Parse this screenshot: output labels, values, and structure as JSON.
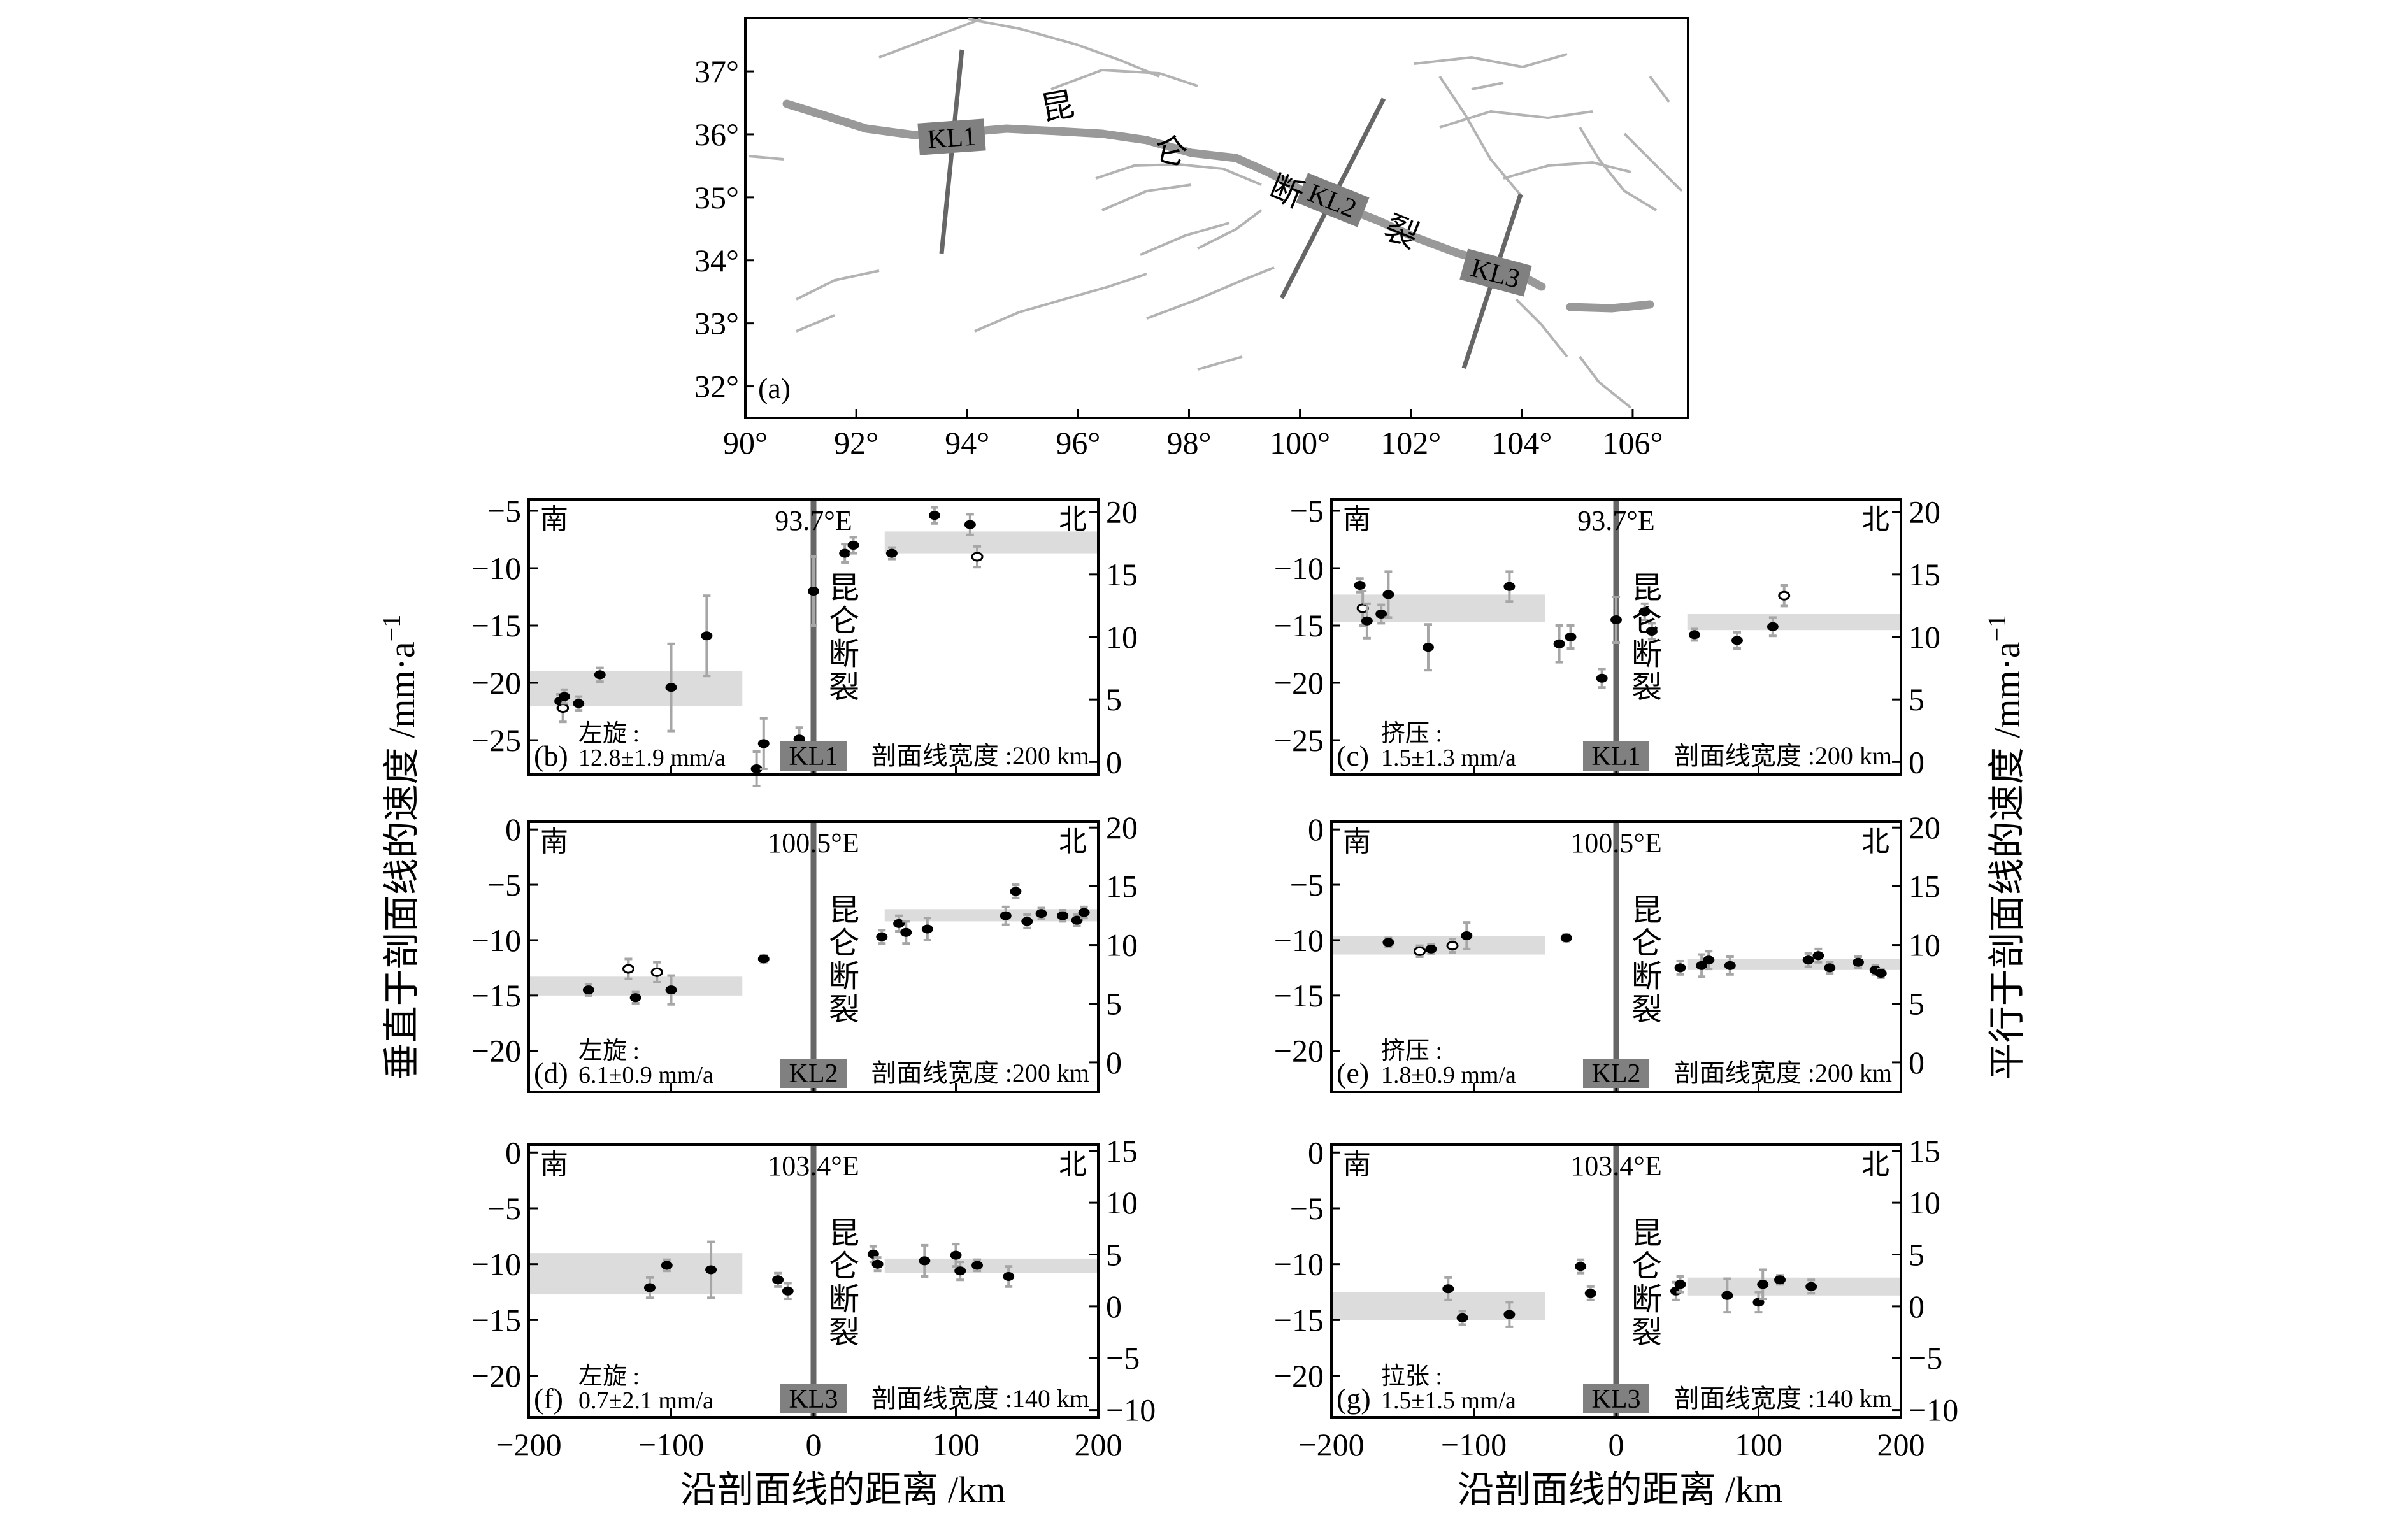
{
  "colors": {
    "fault_trace": "#999999",
    "secondary_faults": "#b3b3b3",
    "profile_line": "#666666",
    "label_box": "#808080",
    "band": "#dcdcdc",
    "error_bar": "#a6a6a6",
    "point": "#000000"
  },
  "map": {
    "panel_label": "(a)",
    "lon_ticks": [
      "90°",
      "92°",
      "94°",
      "96°",
      "98°",
      "100°",
      "102°",
      "104°",
      "106°"
    ],
    "lat_ticks": [
      "32°",
      "33°",
      "34°",
      "35°",
      "36°",
      "37°"
    ],
    "fault_chars": [
      "昆",
      "仑",
      "断",
      "裂"
    ],
    "profile_labels": [
      "KL1",
      "KL2",
      "KL3"
    ]
  },
  "axes_labels": {
    "left_y": "垂直于剖面线的速度 /mm·a",
    "left_y_sup": "−1",
    "right_y": "平行于剖面线的速度 /mm·a",
    "right_y_sup": "−1",
    "x": "沿剖面线的距离 /km"
  },
  "profile_text": {
    "south": "南",
    "north": "北",
    "fault_name": "昆仑断裂",
    "fault_chars": [
      "昆",
      "仑",
      "断",
      "裂"
    ]
  },
  "chart_data": [
    {
      "type": "scatter",
      "panel": "(b)",
      "profile": "KL1",
      "longitude": "93.7°E",
      "motion_label": "左旋 :",
      "rate": "12.8±1.9 mm/a",
      "width_label": "剖面线宽度 :200 km",
      "xlim": [
        -200,
        200
      ],
      "ylim_left": [
        -28,
        -4
      ],
      "ylim_right": [
        -1,
        21
      ],
      "yticks_left": [
        "−5",
        "−10",
        "−15",
        "−20",
        "−25"
      ],
      "yticks_right": [
        "20",
        "15",
        "10",
        "5",
        "0"
      ],
      "xticks": [],
      "bands": [
        {
          "x": [
            -200,
            -50
          ],
          "y": [
            -22,
            -19
          ]
        },
        {
          "x": [
            50,
            200
          ],
          "y": [
            -8.7,
            -6.8
          ]
        }
      ],
      "points": [
        {
          "x": -178,
          "y": -21.6,
          "err": 0.6,
          "open": false
        },
        {
          "x": -176,
          "y": -22.2,
          "err": 1.2,
          "open": true
        },
        {
          "x": -175,
          "y": -21.2,
          "err": 0.6,
          "open": false
        },
        {
          "x": -165,
          "y": -21.8,
          "err": 0.6,
          "open": false
        },
        {
          "x": -150,
          "y": -19.3,
          "err": 0.6,
          "open": false
        },
        {
          "x": -100,
          "y": -20.4,
          "err": 3.8,
          "open": false
        },
        {
          "x": -75,
          "y": -15.9,
          "err": 3.5,
          "open": false
        },
        {
          "x": -40,
          "y": -27.5,
          "err": 1.5,
          "open": false
        },
        {
          "x": -35,
          "y": -25.3,
          "err": 2.2,
          "open": false
        },
        {
          "x": -10,
          "y": -24.9,
          "err": 1.0,
          "open": false
        },
        {
          "x": 0,
          "y": -12.0,
          "err": 3.0,
          "open": false
        },
        {
          "x": 22,
          "y": -8.7,
          "err": 0.8,
          "open": false
        },
        {
          "x": 28,
          "y": -8.0,
          "err": 0.7,
          "open": false
        },
        {
          "x": 55,
          "y": -8.7,
          "err": 0.5,
          "open": false
        },
        {
          "x": 85,
          "y": -5.4,
          "err": 0.7,
          "open": false
        },
        {
          "x": 110,
          "y": -6.2,
          "err": 0.9,
          "open": false
        },
        {
          "x": 115,
          "y": -9.0,
          "err": 0.9,
          "open": true
        }
      ]
    },
    {
      "type": "scatter",
      "panel": "(c)",
      "profile": "KL1",
      "longitude": "93.7°E",
      "motion_label": "挤压 :",
      "rate": "1.5±1.3 mm/a",
      "width_label": "剖面线宽度 :200 km",
      "xlim": [
        -200,
        200
      ],
      "ylim_left": [
        -28,
        -4
      ],
      "ylim_right": [
        -1,
        21
      ],
      "yticks_left": [
        "−5",
        "−10",
        "−15",
        "−20",
        "−25"
      ],
      "yticks_right": [
        "20",
        "15",
        "10",
        "5",
        "0"
      ],
      "xticks": [],
      "bands": [
        {
          "x": [
            -200,
            -50
          ],
          "y": [
            -14.7,
            -12.3
          ]
        },
        {
          "x": [
            50,
            200
          ],
          "y": [
            -15.4,
            -14
          ]
        }
      ],
      "points": [
        {
          "x": -180,
          "y": -11.5,
          "err": 0.6,
          "open": false
        },
        {
          "x": -178,
          "y": -13.5,
          "err": 1.5,
          "open": true
        },
        {
          "x": -175,
          "y": -14.6,
          "err": 1.5,
          "open": false
        },
        {
          "x": -165,
          "y": -14.0,
          "err": 0.8,
          "open": false
        },
        {
          "x": -160,
          "y": -12.3,
          "err": 2.0,
          "open": false
        },
        {
          "x": -132,
          "y": -16.9,
          "err": 2.0,
          "open": false
        },
        {
          "x": -75,
          "y": -11.6,
          "err": 1.3,
          "open": false
        },
        {
          "x": -40,
          "y": -16.6,
          "err": 1.6,
          "open": false
        },
        {
          "x": -32,
          "y": -16.0,
          "err": 1.0,
          "open": false
        },
        {
          "x": -10,
          "y": -19.6,
          "err": 0.8,
          "open": false
        },
        {
          "x": 0,
          "y": -14.5,
          "err": 2.0,
          "open": false
        },
        {
          "x": 20,
          "y": -13.8,
          "err": 0.7,
          "open": false
        },
        {
          "x": 25,
          "y": -15.5,
          "err": 0.7,
          "open": false
        },
        {
          "x": 55,
          "y": -15.8,
          "err": 0.5,
          "open": false
        },
        {
          "x": 85,
          "y": -16.3,
          "err": 0.7,
          "open": false
        },
        {
          "x": 110,
          "y": -15.1,
          "err": 0.8,
          "open": false
        },
        {
          "x": 118,
          "y": -12.4,
          "err": 0.9,
          "open": true
        }
      ]
    },
    {
      "type": "scatter",
      "panel": "(d)",
      "profile": "KL2",
      "longitude": "100.5°E",
      "motion_label": "左旋 :",
      "rate": "6.1±0.9 mm/a",
      "width_label": "剖面线宽度 :200 km",
      "xlim": [
        -200,
        200
      ],
      "ylim_left": [
        -23.7,
        0.7
      ],
      "ylim_right": [
        -2.5,
        20.5
      ],
      "yticks_left": [
        "0",
        "−5",
        "−10",
        "−15",
        "−20"
      ],
      "yticks_right": [
        "20",
        "15",
        "10",
        "5",
        "0"
      ],
      "xticks": [],
      "bands": [
        {
          "x": [
            -200,
            -50
          ],
          "y": [
            -15,
            -13.3
          ]
        },
        {
          "x": [
            50,
            200
          ],
          "y": [
            -8.3,
            -7.2
          ]
        }
      ],
      "points": [
        {
          "x": -158,
          "y": -14.5,
          "err": 0.5,
          "open": false
        },
        {
          "x": -130,
          "y": -12.6,
          "err": 0.9,
          "open": true
        },
        {
          "x": -125,
          "y": -15.2,
          "err": 0.5,
          "open": false
        },
        {
          "x": -110,
          "y": -12.9,
          "err": 0.9,
          "open": true
        },
        {
          "x": -100,
          "y": -14.5,
          "err": 1.3,
          "open": false
        },
        {
          "x": -35,
          "y": -11.7,
          "err": 0.3,
          "open": false
        },
        {
          "x": 48,
          "y": -9.7,
          "err": 0.6,
          "open": false
        },
        {
          "x": 60,
          "y": -8.5,
          "err": 0.7,
          "open": false
        },
        {
          "x": 65,
          "y": -9.3,
          "err": 1.0,
          "open": false
        },
        {
          "x": 80,
          "y": -9.0,
          "err": 1.0,
          "open": false
        },
        {
          "x": 135,
          "y": -7.8,
          "err": 0.8,
          "open": false
        },
        {
          "x": 142,
          "y": -5.6,
          "err": 0.6,
          "open": false
        },
        {
          "x": 150,
          "y": -8.3,
          "err": 0.6,
          "open": false
        },
        {
          "x": 160,
          "y": -7.6,
          "err": 0.5,
          "open": false
        },
        {
          "x": 175,
          "y": -7.8,
          "err": 0.5,
          "open": false
        },
        {
          "x": 185,
          "y": -8.2,
          "err": 0.5,
          "open": false
        },
        {
          "x": 190,
          "y": -7.5,
          "err": 0.5,
          "open": false
        }
      ]
    },
    {
      "type": "scatter",
      "panel": "(e)",
      "profile": "KL2",
      "longitude": "100.5°E",
      "motion_label": "挤压 :",
      "rate": "1.8±0.9 mm/a",
      "width_label": "剖面线宽度 :200 km",
      "xlim": [
        -200,
        200
      ],
      "ylim_left": [
        -23.7,
        0.7
      ],
      "ylim_right": [
        -2.5,
        20.5
      ],
      "yticks_left": [
        "0",
        "−5",
        "−10",
        "−15",
        "−20"
      ],
      "yticks_right": [
        "20",
        "15",
        "10",
        "5",
        "0"
      ],
      "xticks": [],
      "bands": [
        {
          "x": [
            -200,
            -50
          ],
          "y": [
            -11.3,
            -9.6
          ]
        },
        {
          "x": [
            50,
            200
          ],
          "y": [
            -12.7,
            -11.7
          ]
        }
      ],
      "points": [
        {
          "x": -160,
          "y": -10.2,
          "err": 0.4,
          "open": false
        },
        {
          "x": -138,
          "y": -11.0,
          "err": 0.5,
          "open": true
        },
        {
          "x": -130,
          "y": -10.8,
          "err": 0.4,
          "open": false
        },
        {
          "x": -115,
          "y": -10.5,
          "err": 0.6,
          "open": true
        },
        {
          "x": -105,
          "y": -9.6,
          "err": 1.2,
          "open": false
        },
        {
          "x": -35,
          "y": -9.8,
          "err": 0.3,
          "open": false
        },
        {
          "x": 45,
          "y": -12.5,
          "err": 0.6,
          "open": false
        },
        {
          "x": 60,
          "y": -12.3,
          "err": 1.0,
          "open": false
        },
        {
          "x": 65,
          "y": -11.8,
          "err": 0.8,
          "open": false
        },
        {
          "x": 80,
          "y": -12.3,
          "err": 0.8,
          "open": false
        },
        {
          "x": 135,
          "y": -11.8,
          "err": 0.6,
          "open": false
        },
        {
          "x": 142,
          "y": -11.4,
          "err": 0.6,
          "open": false
        },
        {
          "x": 150,
          "y": -12.5,
          "err": 0.5,
          "open": false
        },
        {
          "x": 170,
          "y": -12.0,
          "err": 0.5,
          "open": false
        },
        {
          "x": 182,
          "y": -12.7,
          "err": 0.4,
          "open": false
        },
        {
          "x": 186,
          "y": -13.0,
          "err": 0.4,
          "open": false
        }
      ]
    },
    {
      "type": "scatter",
      "panel": "(f)",
      "profile": "KL3",
      "longitude": "103.4°E",
      "motion_label": "左旋 :",
      "rate": "0.7±2.1 mm/a",
      "width_label": "剖面线宽度 :140 km",
      "xlim": [
        -200,
        200
      ],
      "ylim_left": [
        -23.7,
        0.7
      ],
      "ylim_right": [
        -10.7,
        15.6
      ],
      "yticks_left": [
        "0",
        "−5",
        "−10",
        "−15",
        "−20"
      ],
      "yticks_right": [
        "15",
        "10",
        "5",
        "0",
        "−5",
        "−10"
      ],
      "xticks": [
        "−200",
        "−100",
        "0",
        "100",
        "200"
      ],
      "bands": [
        {
          "x": [
            -200,
            -50
          ],
          "y": [
            -12.7,
            -9.0
          ]
        },
        {
          "x": [
            50,
            200
          ],
          "y": [
            -10.8,
            -9.5
          ]
        }
      ],
      "points": [
        {
          "x": -115,
          "y": -12.1,
          "err": 0.9,
          "open": false
        },
        {
          "x": -103,
          "y": -10.1,
          "err": 0.5,
          "open": false
        },
        {
          "x": -72,
          "y": -10.5,
          "err": 2.5,
          "open": false
        },
        {
          "x": -25,
          "y": -11.4,
          "err": 0.6,
          "open": false
        },
        {
          "x": -18,
          "y": -12.4,
          "err": 0.7,
          "open": false
        },
        {
          "x": 42,
          "y": -9.1,
          "err": 0.7,
          "open": false
        },
        {
          "x": 45,
          "y": -10.0,
          "err": 0.6,
          "open": false
        },
        {
          "x": 78,
          "y": -9.7,
          "err": 1.4,
          "open": false
        },
        {
          "x": 100,
          "y": -9.2,
          "err": 1.0,
          "open": false
        },
        {
          "x": 103,
          "y": -10.6,
          "err": 0.8,
          "open": false
        },
        {
          "x": 115,
          "y": -10.1,
          "err": 0.5,
          "open": false
        },
        {
          "x": 137,
          "y": -11.1,
          "err": 0.9,
          "open": false
        }
      ]
    },
    {
      "type": "scatter",
      "panel": "(g)",
      "profile": "KL3",
      "longitude": "103.4°E",
      "motion_label": "拉张 :",
      "rate": "1.5±1.5 mm/a",
      "width_label": "剖面线宽度 :140 km",
      "xlim": [
        -200,
        200
      ],
      "ylim_left": [
        -23.7,
        0.7
      ],
      "ylim_right": [
        -10.7,
        15.6
      ],
      "yticks_left": [
        "0",
        "−5",
        "−10",
        "−15",
        "−20"
      ],
      "yticks_right": [
        "15",
        "10",
        "5",
        "0",
        "−5",
        "−10"
      ],
      "xticks": [
        "−200",
        "−100",
        "0",
        "100",
        "200"
      ],
      "bands": [
        {
          "x": [
            -200,
            -50
          ],
          "y": [
            -15,
            -12.5
          ]
        },
        {
          "x": [
            50,
            200
          ],
          "y": [
            -12.8,
            -11.2
          ]
        }
      ],
      "points": [
        {
          "x": -118,
          "y": -12.2,
          "err": 1.0,
          "open": false
        },
        {
          "x": -108,
          "y": -14.8,
          "err": 0.6,
          "open": false
        },
        {
          "x": -75,
          "y": -14.5,
          "err": 1.1,
          "open": false
        },
        {
          "x": -25,
          "y": -10.2,
          "err": 0.6,
          "open": false
        },
        {
          "x": -18,
          "y": -12.6,
          "err": 0.6,
          "open": false
        },
        {
          "x": 42,
          "y": -12.4,
          "err": 0.8,
          "open": false
        },
        {
          "x": 45,
          "y": -11.8,
          "err": 0.7,
          "open": false
        },
        {
          "x": 78,
          "y": -12.8,
          "err": 1.5,
          "open": false
        },
        {
          "x": 100,
          "y": -13.4,
          "err": 0.9,
          "open": false
        },
        {
          "x": 103,
          "y": -11.8,
          "err": 1.3,
          "open": false
        },
        {
          "x": 115,
          "y": -11.4,
          "err": 0.4,
          "open": false
        },
        {
          "x": 137,
          "y": -12.0,
          "err": 0.6,
          "open": false
        }
      ]
    }
  ]
}
